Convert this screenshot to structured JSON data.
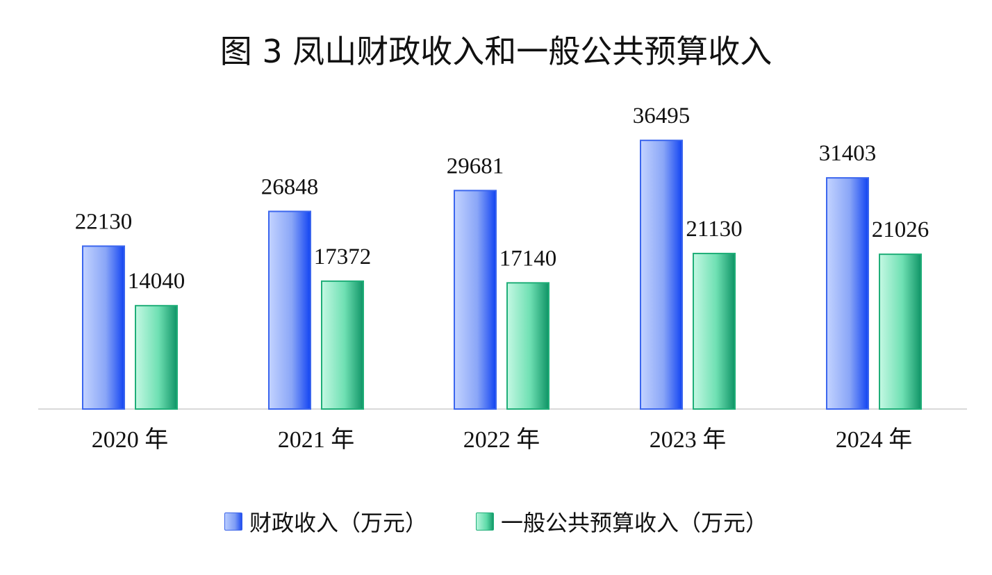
{
  "chart_data": {
    "type": "bar",
    "title": "图 3  凤山财政收入和一般公共预算收入",
    "categories": [
      "2020 年",
      "2021 年",
      "2022 年",
      "2023 年",
      "2024 年"
    ],
    "series": [
      {
        "name": "财政收入（万元）",
        "values": [
          22130,
          26848,
          29681,
          36495,
          31403
        ],
        "color": "#2a5cf2"
      },
      {
        "name": "一般公共预算收入（万元）",
        "values": [
          14040,
          17372,
          17140,
          21130,
          21026
        ],
        "color": "#23c98c"
      }
    ],
    "ylim": [
      0,
      40000
    ],
    "grid": false,
    "legend": "bottom"
  }
}
